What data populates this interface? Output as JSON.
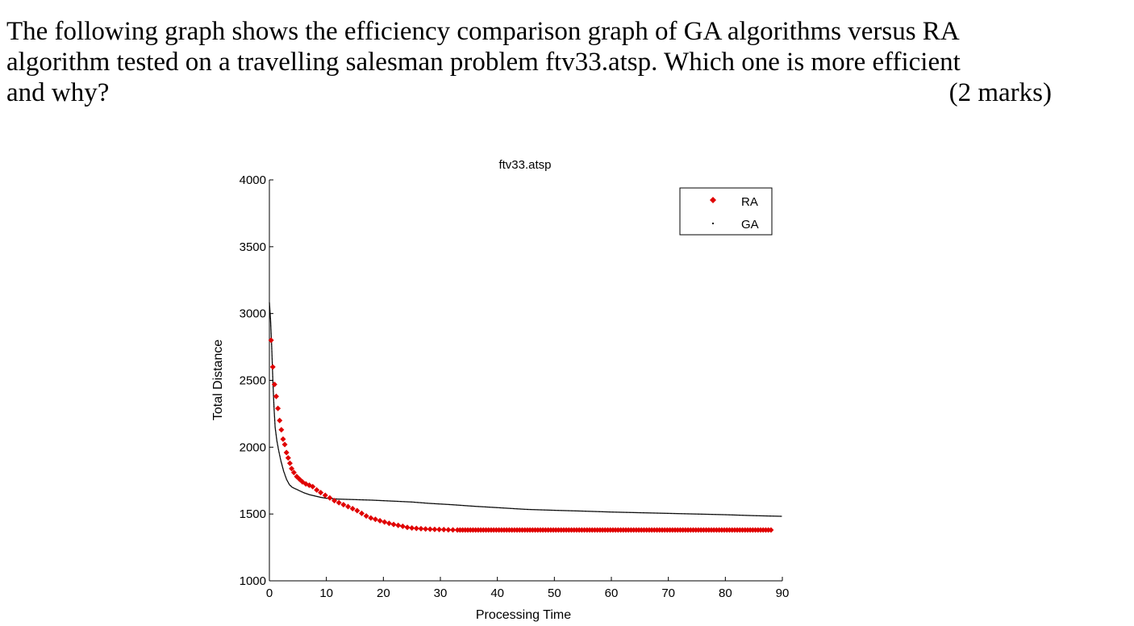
{
  "question": {
    "line1": "The following graph shows the efficiency comparison graph of GA algorithms versus RA",
    "line2": "algorithm tested on a travelling salesman problem ftv33.atsp. Which one is more efficient",
    "line3": "and why?",
    "marks": "(2 marks)"
  },
  "chart_data": {
    "type": "scatter",
    "title": "ftv33.atsp",
    "xlabel": "Processing Time",
    "ylabel": "Total Distance",
    "xlim": [
      0,
      90
    ],
    "ylim": [
      1000,
      4000
    ],
    "xticks": [
      0,
      10,
      20,
      30,
      40,
      50,
      60,
      70,
      80,
      90
    ],
    "yticks": [
      1000,
      1500,
      2000,
      2500,
      3000,
      3500,
      4000
    ],
    "grid": false,
    "legend_position": "top-right",
    "series": [
      {
        "name": "RA",
        "color": "#e00000",
        "marker": "diamond",
        "points": [
          [
            0.3,
            2800
          ],
          [
            0.6,
            2600
          ],
          [
            0.9,
            2470
          ],
          [
            1.2,
            2380
          ],
          [
            1.5,
            2290
          ],
          [
            1.8,
            2200
          ],
          [
            2.1,
            2130
          ],
          [
            2.4,
            2060
          ],
          [
            2.7,
            2020
          ],
          [
            3.0,
            1960
          ],
          [
            3.3,
            1920
          ],
          [
            3.6,
            1880
          ],
          [
            3.9,
            1840
          ],
          [
            4.3,
            1810
          ],
          [
            4.8,
            1780
          ],
          [
            5.3,
            1760
          ],
          [
            5.8,
            1740
          ],
          [
            6.4,
            1725
          ],
          [
            7.0,
            1715
          ],
          [
            7.6,
            1705
          ],
          [
            8.3,
            1680
          ],
          [
            9.0,
            1660
          ],
          [
            9.8,
            1640
          ],
          [
            10.6,
            1620
          ],
          [
            11.4,
            1600
          ],
          [
            12.2,
            1585
          ],
          [
            13.0,
            1570
          ],
          [
            13.8,
            1555
          ],
          [
            14.6,
            1540
          ],
          [
            15.4,
            1525
          ],
          [
            16.2,
            1505
          ],
          [
            17.0,
            1485
          ],
          [
            17.8,
            1470
          ],
          [
            18.6,
            1460
          ],
          [
            19.4,
            1450
          ],
          [
            20.2,
            1440
          ],
          [
            21.0,
            1430
          ],
          [
            21.8,
            1422
          ],
          [
            22.6,
            1415
          ],
          [
            23.4,
            1408
          ],
          [
            24.2,
            1400
          ],
          [
            25.0,
            1395
          ],
          [
            25.8,
            1392
          ],
          [
            26.6,
            1390
          ],
          [
            27.4,
            1388
          ],
          [
            28.2,
            1386
          ],
          [
            29.0,
            1385
          ],
          [
            29.8,
            1384
          ],
          [
            30.6,
            1383
          ],
          [
            31.4,
            1382
          ],
          [
            32.2,
            1381
          ],
          [
            33.0,
            1380
          ],
          [
            88.0,
            1380
          ]
        ]
      },
      {
        "name": "GA",
        "color": "#000000",
        "marker": "point",
        "points": [
          [
            0,
            3080
          ],
          [
            0.2,
            2950
          ],
          [
            0.4,
            2750
          ],
          [
            0.6,
            2500
          ],
          [
            0.8,
            2300
          ],
          [
            1.0,
            2150
          ],
          [
            1.3,
            2050
          ],
          [
            1.6,
            1980
          ],
          [
            2.0,
            1900
          ],
          [
            2.5,
            1820
          ],
          [
            3.0,
            1760
          ],
          [
            3.5,
            1720
          ],
          [
            4.0,
            1700
          ],
          [
            5.0,
            1680
          ],
          [
            6.0,
            1660
          ],
          [
            7.0,
            1645
          ],
          [
            8.0,
            1635
          ],
          [
            9.0,
            1625
          ],
          [
            10.0,
            1618
          ],
          [
            12.0,
            1612
          ],
          [
            15.0,
            1608
          ],
          [
            18.0,
            1604
          ],
          [
            20.0,
            1600
          ],
          [
            25.0,
            1590
          ],
          [
            28.0,
            1580
          ],
          [
            32.0,
            1570
          ],
          [
            36.0,
            1558
          ],
          [
            40.0,
            1548
          ],
          [
            45.0,
            1535
          ],
          [
            50.0,
            1528
          ],
          [
            55.0,
            1522
          ],
          [
            60.0,
            1515
          ],
          [
            65.0,
            1510
          ],
          [
            70.0,
            1505
          ],
          [
            75.0,
            1500
          ],
          [
            80.0,
            1495
          ],
          [
            85.0,
            1488
          ],
          [
            90.0,
            1483
          ]
        ]
      }
    ]
  }
}
